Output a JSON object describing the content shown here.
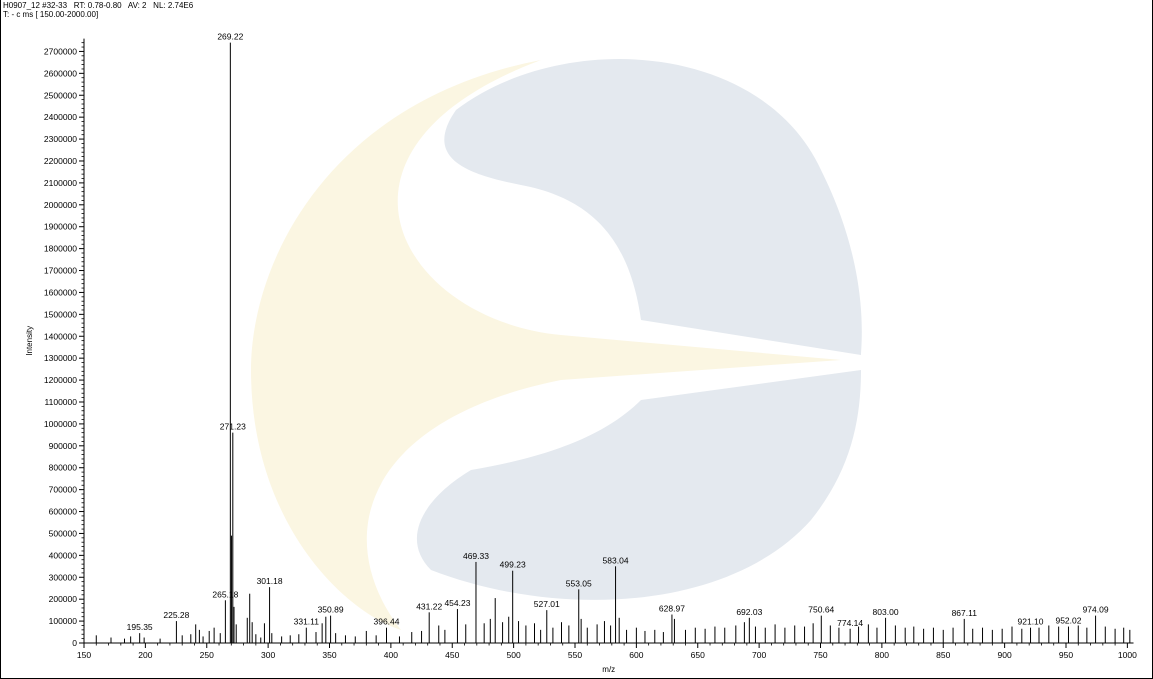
{
  "header": {
    "line1": "H0907_12 #32-33   RT: 0.78-0.80   AV: 2   NL: 2.74E6",
    "line2": "T: - c ms [ 150.00-2000.00]"
  },
  "colors": {
    "axis": "#000000",
    "peak": "#000000",
    "watermark_gray": "#e4e9ef",
    "watermark_yellow": "#fbf6e2"
  },
  "watermark": {
    "icon": "c-shaped-logo-watermark"
  },
  "chart_data": {
    "type": "bar",
    "title": "",
    "xlabel": "m/z",
    "ylabel": "Intensity",
    "xlim": [
      150,
      1005
    ],
    "ylim": [
      0,
      2740000
    ],
    "grid": false,
    "x_ticks": [
      "150",
      "200",
      "250",
      "300",
      "350",
      "400",
      "450",
      "500",
      "550",
      "600",
      "650",
      "700",
      "750",
      "800",
      "850",
      "900",
      "950",
      "1000"
    ],
    "y_ticks": [
      "0",
      "100000",
      "200000",
      "300000",
      "400000",
      "500000",
      "600000",
      "700000",
      "800000",
      "900000",
      "1000000",
      "1100000",
      "1200000",
      "1300000",
      "1400000",
      "1500000",
      "1600000",
      "1700000",
      "1800000",
      "1900000",
      "2000000",
      "2100000",
      "2200000",
      "2300000",
      "2400000",
      "2500000",
      "2600000",
      "2700000"
    ],
    "labeled_peaks": [
      {
        "mz": 195.35,
        "intensity": 45000,
        "label": "195.35"
      },
      {
        "mz": 225.28,
        "intensity": 100000,
        "label": "225.28"
      },
      {
        "mz": 265.18,
        "intensity": 195000,
        "label": "265.18"
      },
      {
        "mz": 269.22,
        "intensity": 2740000,
        "label": "269.22"
      },
      {
        "mz": 271.23,
        "intensity": 960000,
        "label": "271.23"
      },
      {
        "mz": 301.18,
        "intensity": 255000,
        "label": "301.18"
      },
      {
        "mz": 331.11,
        "intensity": 70000,
        "label": "331.11"
      },
      {
        "mz": 350.89,
        "intensity": 125000,
        "label": "350.89"
      },
      {
        "mz": 396.44,
        "intensity": 70000,
        "label": "396.44"
      },
      {
        "mz": 431.22,
        "intensity": 140000,
        "label": "431.22"
      },
      {
        "mz": 454.23,
        "intensity": 155000,
        "label": "454.23"
      },
      {
        "mz": 469.33,
        "intensity": 370000,
        "label": "469.33"
      },
      {
        "mz": 499.23,
        "intensity": 330000,
        "label": "499.23"
      },
      {
        "mz": 527.01,
        "intensity": 150000,
        "label": "527.01"
      },
      {
        "mz": 553.05,
        "intensity": 245000,
        "label": "553.05"
      },
      {
        "mz": 583.04,
        "intensity": 350000,
        "label": "583.04"
      },
      {
        "mz": 628.97,
        "intensity": 130000,
        "label": "628.97"
      },
      {
        "mz": 692.03,
        "intensity": 115000,
        "label": "692.03"
      },
      {
        "mz": 750.64,
        "intensity": 125000,
        "label": "750.64"
      },
      {
        "mz": 774.14,
        "intensity": 65000,
        "label": "774.14"
      },
      {
        "mz": 803.0,
        "intensity": 115000,
        "label": "803.00"
      },
      {
        "mz": 867.11,
        "intensity": 110000,
        "label": "867.11"
      },
      {
        "mz": 921.1,
        "intensity": 70000,
        "label": "921.10"
      },
      {
        "mz": 952.02,
        "intensity": 75000,
        "label": "952.02"
      },
      {
        "mz": 974.09,
        "intensity": 125000,
        "label": "974.09"
      }
    ],
    "unlabeled_peaks": [
      {
        "mz": 160,
        "intensity": 35000
      },
      {
        "mz": 172,
        "intensity": 25000
      },
      {
        "mz": 183,
        "intensity": 20000
      },
      {
        "mz": 188,
        "intensity": 30000
      },
      {
        "mz": 199,
        "intensity": 25000
      },
      {
        "mz": 212,
        "intensity": 20000
      },
      {
        "mz": 230,
        "intensity": 35000
      },
      {
        "mz": 237,
        "intensity": 40000
      },
      {
        "mz": 241,
        "intensity": 85000
      },
      {
        "mz": 244,
        "intensity": 60000
      },
      {
        "mz": 247,
        "intensity": 30000
      },
      {
        "mz": 252,
        "intensity": 55000
      },
      {
        "mz": 256,
        "intensity": 70000
      },
      {
        "mz": 261,
        "intensity": 45000
      },
      {
        "mz": 270.2,
        "intensity": 490000
      },
      {
        "mz": 272.2,
        "intensity": 165000
      },
      {
        "mz": 274,
        "intensity": 85000
      },
      {
        "mz": 283,
        "intensity": 115000
      },
      {
        "mz": 285,
        "intensity": 225000
      },
      {
        "mz": 287,
        "intensity": 95000
      },
      {
        "mz": 290,
        "intensity": 40000
      },
      {
        "mz": 294,
        "intensity": 25000
      },
      {
        "mz": 297,
        "intensity": 90000
      },
      {
        "mz": 303,
        "intensity": 45000
      },
      {
        "mz": 311,
        "intensity": 30000
      },
      {
        "mz": 318,
        "intensity": 35000
      },
      {
        "mz": 325,
        "intensity": 40000
      },
      {
        "mz": 339,
        "intensity": 50000
      },
      {
        "mz": 344,
        "intensity": 90000
      },
      {
        "mz": 347,
        "intensity": 120000
      },
      {
        "mz": 355,
        "intensity": 45000
      },
      {
        "mz": 363,
        "intensity": 35000
      },
      {
        "mz": 371,
        "intensity": 30000
      },
      {
        "mz": 380,
        "intensity": 55000
      },
      {
        "mz": 388,
        "intensity": 35000
      },
      {
        "mz": 407,
        "intensity": 30000
      },
      {
        "mz": 417,
        "intensity": 50000
      },
      {
        "mz": 425,
        "intensity": 55000
      },
      {
        "mz": 439,
        "intensity": 80000
      },
      {
        "mz": 444,
        "intensity": 60000
      },
      {
        "mz": 461,
        "intensity": 85000
      },
      {
        "mz": 476,
        "intensity": 90000
      },
      {
        "mz": 481,
        "intensity": 110000
      },
      {
        "mz": 485,
        "intensity": 205000
      },
      {
        "mz": 491,
        "intensity": 95000
      },
      {
        "mz": 496,
        "intensity": 120000
      },
      {
        "mz": 504,
        "intensity": 100000
      },
      {
        "mz": 510,
        "intensity": 80000
      },
      {
        "mz": 517,
        "intensity": 90000
      },
      {
        "mz": 522,
        "intensity": 60000
      },
      {
        "mz": 532,
        "intensity": 70000
      },
      {
        "mz": 539,
        "intensity": 95000
      },
      {
        "mz": 545,
        "intensity": 80000
      },
      {
        "mz": 555,
        "intensity": 110000
      },
      {
        "mz": 560,
        "intensity": 70000
      },
      {
        "mz": 568,
        "intensity": 85000
      },
      {
        "mz": 574,
        "intensity": 100000
      },
      {
        "mz": 579,
        "intensity": 80000
      },
      {
        "mz": 586,
        "intensity": 115000
      },
      {
        "mz": 592,
        "intensity": 60000
      },
      {
        "mz": 600,
        "intensity": 70000
      },
      {
        "mz": 607,
        "intensity": 55000
      },
      {
        "mz": 615,
        "intensity": 60000
      },
      {
        "mz": 622,
        "intensity": 50000
      },
      {
        "mz": 631,
        "intensity": 110000
      },
      {
        "mz": 640,
        "intensity": 60000
      },
      {
        "mz": 648,
        "intensity": 70000
      },
      {
        "mz": 656,
        "intensity": 65000
      },
      {
        "mz": 664,
        "intensity": 75000
      },
      {
        "mz": 672,
        "intensity": 70000
      },
      {
        "mz": 681,
        "intensity": 80000
      },
      {
        "mz": 688,
        "intensity": 95000
      },
      {
        "mz": 697,
        "intensity": 75000
      },
      {
        "mz": 705,
        "intensity": 70000
      },
      {
        "mz": 713,
        "intensity": 85000
      },
      {
        "mz": 721,
        "intensity": 70000
      },
      {
        "mz": 729,
        "intensity": 80000
      },
      {
        "mz": 737,
        "intensity": 75000
      },
      {
        "mz": 744,
        "intensity": 90000
      },
      {
        "mz": 758,
        "intensity": 80000
      },
      {
        "mz": 765,
        "intensity": 70000
      },
      {
        "mz": 781,
        "intensity": 75000
      },
      {
        "mz": 789,
        "intensity": 85000
      },
      {
        "mz": 796,
        "intensity": 70000
      },
      {
        "mz": 811,
        "intensity": 80000
      },
      {
        "mz": 819,
        "intensity": 70000
      },
      {
        "mz": 826,
        "intensity": 75000
      },
      {
        "mz": 834,
        "intensity": 65000
      },
      {
        "mz": 842,
        "intensity": 70000
      },
      {
        "mz": 850,
        "intensity": 60000
      },
      {
        "mz": 858,
        "intensity": 70000
      },
      {
        "mz": 874,
        "intensity": 65000
      },
      {
        "mz": 882,
        "intensity": 70000
      },
      {
        "mz": 890,
        "intensity": 60000
      },
      {
        "mz": 898,
        "intensity": 65000
      },
      {
        "mz": 906,
        "intensity": 75000
      },
      {
        "mz": 914,
        "intensity": 65000
      },
      {
        "mz": 928,
        "intensity": 70000
      },
      {
        "mz": 936,
        "intensity": 80000
      },
      {
        "mz": 944,
        "intensity": 75000
      },
      {
        "mz": 960,
        "intensity": 80000
      },
      {
        "mz": 967,
        "intensity": 70000
      },
      {
        "mz": 982,
        "intensity": 75000
      },
      {
        "mz": 990,
        "intensity": 65000
      },
      {
        "mz": 997,
        "intensity": 70000
      },
      {
        "mz": 1002,
        "intensity": 60000
      }
    ]
  }
}
